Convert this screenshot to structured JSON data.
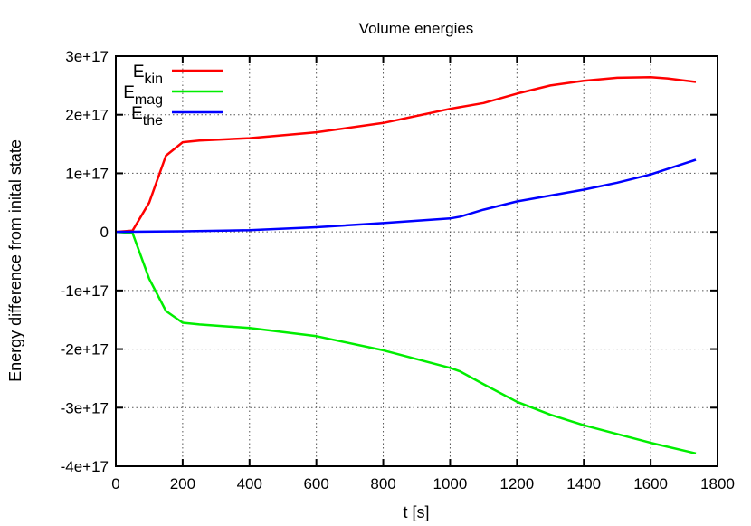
{
  "chart_data": {
    "type": "line",
    "title": "Volume energies",
    "xlabel": "t [s]",
    "ylabel": "Energy difference from inital state",
    "xlim": [
      0,
      1800
    ],
    "ylim": [
      -4e+17,
      3e+17
    ],
    "grid": true,
    "legend_placement": "top-left",
    "x_ticks": [
      0,
      200,
      400,
      600,
      800,
      1000,
      1200,
      1400,
      1600,
      1800
    ],
    "x_tick_labels": [
      "0",
      "200",
      "400",
      "600",
      "800",
      "1000",
      "1200",
      "1400",
      "1600",
      "1800"
    ],
    "y_ticks": [
      3e+17,
      2e+17,
      1e+17,
      0,
      -1e+17,
      -2e+17,
      -3e+17,
      -4e+17
    ],
    "y_tick_labels": [
      "3e+17",
      "2e+17",
      "1e+17",
      "0",
      "-1e+17",
      "-2e+17",
      "-3e+17",
      "-4e+17"
    ],
    "series": [
      {
        "name_base": "E",
        "name_sub": "kin",
        "color": "#ff0000",
        "x": [
          0,
          50,
          100,
          150,
          200,
          250,
          400,
          600,
          800,
          1000,
          1100,
          1200,
          1300,
          1400,
          1500,
          1600,
          1650,
          1735
        ],
        "y": [
          0,
          2000000000000000.0,
          5e+16,
          1.3e+17,
          1.53e+17,
          1.56e+17,
          1.6e+17,
          1.7e+17,
          1.86e+17,
          2.1e+17,
          2.2e+17,
          2.36e+17,
          2.5e+17,
          2.58e+17,
          2.63e+17,
          2.64e+17,
          2.62e+17,
          2.56e+17
        ]
      },
      {
        "name_base": "E",
        "name_sub": "mag",
        "color": "#00ee00",
        "x": [
          0,
          50,
          100,
          150,
          200,
          250,
          400,
          600,
          800,
          1000,
          1030,
          1100,
          1200,
          1300,
          1400,
          1500,
          1600,
          1735
        ],
        "y": [
          0,
          -2000000000000000.0,
          -8e+16,
          -1.35e+17,
          -1.55e+17,
          -1.58e+17,
          -1.64e+17,
          -1.78e+17,
          -2.02e+17,
          -2.32e+17,
          -2.38e+17,
          -2.6e+17,
          -2.9e+17,
          -3.12e+17,
          -3.3e+17,
          -3.45e+17,
          -3.6e+17,
          -3.78e+17
        ]
      },
      {
        "name_base": "E",
        "name_sub": "the",
        "color": "#0000ff",
        "x": [
          0,
          200,
          400,
          600,
          800,
          1000,
          1030,
          1100,
          1200,
          1300,
          1400,
          1500,
          1600,
          1735
        ],
        "y": [
          0,
          1000000000000000.0,
          3000000000000000.0,
          8000000000000000.0,
          1.5e+16,
          2.3e+16,
          2.6e+16,
          3.8e+16,
          5.2e+16,
          6.2e+16,
          7.2e+16,
          8.4e+16,
          9.8e+16,
          1.23e+17
        ]
      }
    ]
  }
}
